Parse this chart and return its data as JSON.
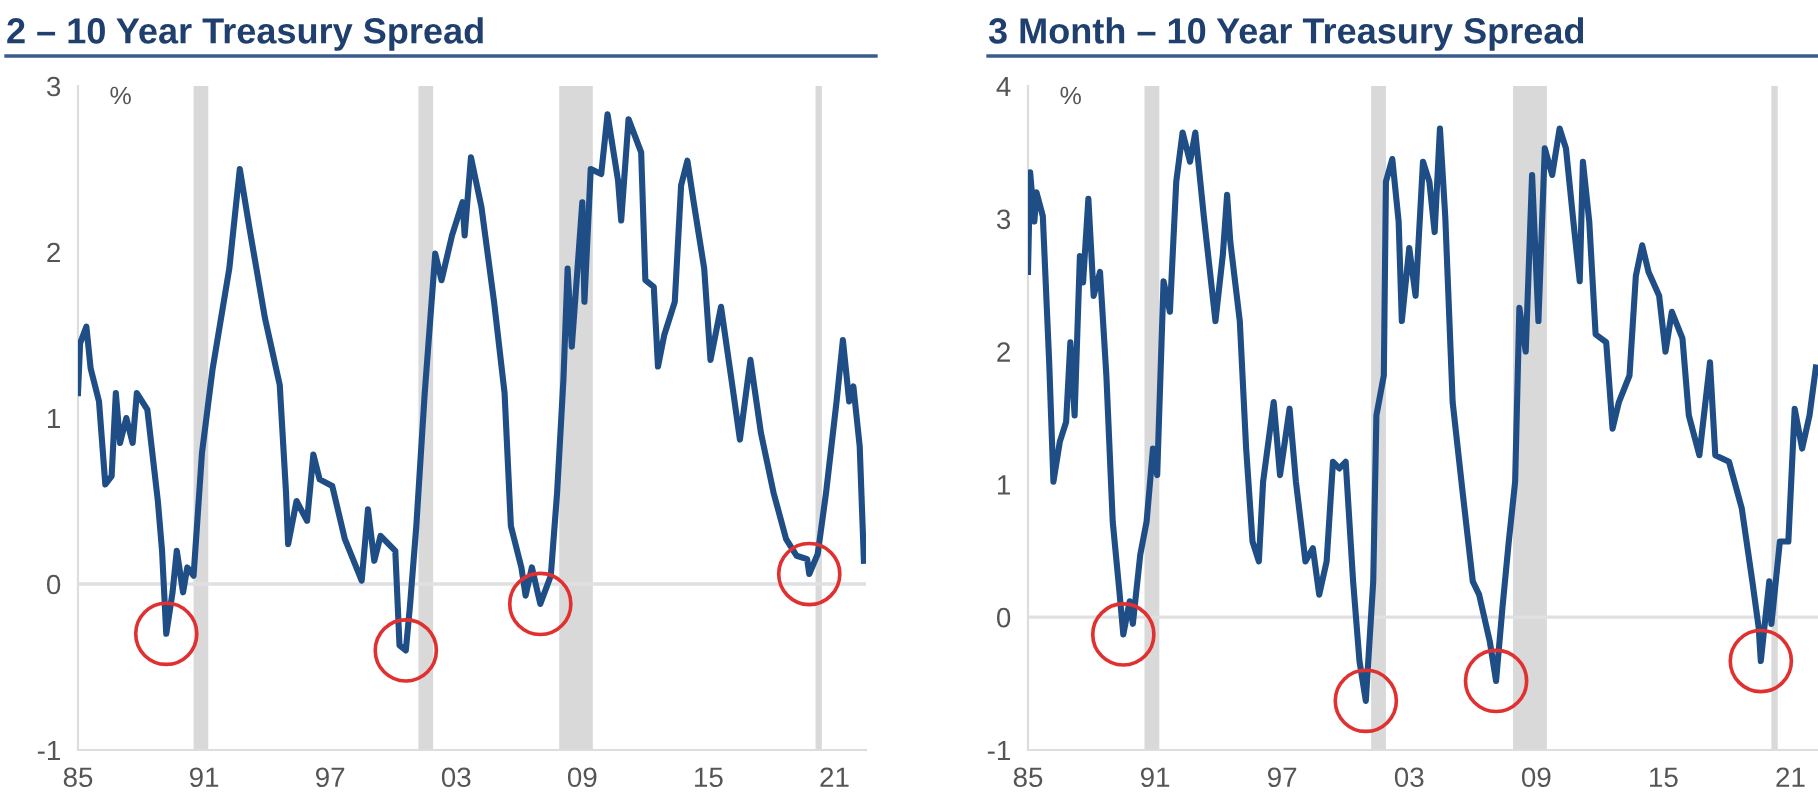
{
  "chart_data": [
    {
      "type": "line",
      "title": "2 – 10 Year Treasury Spread",
      "ylabel": "%",
      "xlim": [
        1985,
        2022.5
      ],
      "xticks": [
        {
          "value": 1985,
          "label": "85"
        },
        {
          "value": 1991,
          "label": "91"
        },
        {
          "value": 1997,
          "label": "97"
        },
        {
          "value": 2003,
          "label": "03"
        },
        {
          "value": 2009,
          "label": "09"
        },
        {
          "value": 2015,
          "label": "15"
        },
        {
          "value": 2021,
          "label": "21"
        }
      ],
      "ylim": [
        -1,
        3
      ],
      "yticks": [
        -1,
        0,
        1,
        2,
        3
      ],
      "grid": false,
      "legend": false,
      "ref_lines": [
        {
          "axis": "y",
          "value": 0,
          "color": "#e0e0e0"
        }
      ],
      "bands": [
        {
          "axis": "x",
          "from": 1990.5,
          "to": 1991.2,
          "color": "#d9d9d9"
        },
        {
          "axis": "x",
          "from": 2001.2,
          "to": 2001.9,
          "color": "#d9d9d9"
        },
        {
          "axis": "x",
          "from": 2007.9,
          "to": 2009.5,
          "color": "#d9d9d9"
        },
        {
          "axis": "x",
          "from": 2020.1,
          "to": 2020.4,
          "color": "#d9d9d9"
        }
      ],
      "series": [
        {
          "color": "#1f4e87",
          "x": [
            1985.0,
            1985.1,
            1985.4,
            1985.6,
            1986.0,
            1986.3,
            1986.6,
            1986.8,
            1987.0,
            1987.3,
            1987.6,
            1987.8,
            1988.3,
            1988.8,
            1989.0,
            1989.2,
            1989.5,
            1989.7,
            1990.0,
            1990.2,
            1990.5,
            1990.9,
            1991.4,
            1992.2,
            1992.7,
            1993.15,
            1993.9,
            1994.6,
            1994.9,
            1995.0,
            1995.4,
            1995.9,
            1996.2,
            1996.5,
            1997.1,
            1997.7,
            1998.5,
            1998.8,
            1999.1,
            1999.4,
            2000.1,
            2000.3,
            2000.6,
            2000.8,
            2001.1,
            2001.5,
            2002.0,
            2002.3,
            2002.8,
            2003.3,
            2003.4,
            2003.7,
            2004.2,
            2004.8,
            2005.3,
            2005.6,
            2006.1,
            2006.3,
            2006.6,
            2007.0,
            2007.5,
            2007.8,
            2008.1,
            2008.3,
            2008.5,
            2009.0,
            2009.1,
            2009.4,
            2009.9,
            2010.2,
            2010.7,
            2010.85,
            2011.2,
            2011.8,
            2012.0,
            2012.4,
            2012.6,
            2012.9,
            2013.4,
            2013.7,
            2014.0,
            2014.3,
            2014.8,
            2015.1,
            2015.6,
            2016.1,
            2016.5,
            2017.0,
            2017.5,
            2018.1,
            2018.7,
            2019.2,
            2019.7,
            2019.8,
            2020.2,
            2020.6,
            2021.1,
            2021.4,
            2021.7,
            2021.9,
            2022.2,
            2022.4
          ],
          "values": [
            1.15,
            1.45,
            1.55,
            1.3,
            1.1,
            0.6,
            0.65,
            1.15,
            0.85,
            1.0,
            0.85,
            1.15,
            1.05,
            0.5,
            0.2,
            -0.3,
            -0.05,
            0.2,
            -0.05,
            0.1,
            0.05,
            0.79,
            1.29,
            1.9,
            2.5,
            2.15,
            1.6,
            1.2,
            0.55,
            0.24,
            0.5,
            0.38,
            0.78,
            0.63,
            0.59,
            0.27,
            0.02,
            0.45,
            0.14,
            0.29,
            0.2,
            -0.37,
            -0.4,
            -0.13,
            0.35,
            1.15,
            1.99,
            1.83,
            2.1,
            2.3,
            2.1,
            2.57,
            2.27,
            1.7,
            1.15,
            0.35,
            0.1,
            -0.07,
            0.1,
            -0.12,
            0.05,
            0.55,
            1.23,
            1.9,
            1.43,
            2.3,
            1.7,
            2.5,
            2.47,
            2.83,
            2.43,
            2.19,
            2.8,
            2.6,
            1.83,
            1.79,
            1.31,
            1.5,
            1.7,
            2.4,
            2.55,
            2.3,
            1.9,
            1.35,
            1.67,
            1.23,
            0.87,
            1.35,
            0.91,
            0.55,
            0.27,
            0.17,
            0.15,
            0.06,
            0.18,
            0.55,
            1.1,
            1.47,
            1.1,
            1.19,
            0.83,
            0.14
          ]
        }
      ]
    },
    {
      "type": "line",
      "title": "3 Month – 10 Year Treasury Spread",
      "ylabel": "%",
      "xlim": [
        1985,
        2022.3
      ],
      "xticks": [
        {
          "value": 1985,
          "label": "85"
        },
        {
          "value": 1991,
          "label": "91"
        },
        {
          "value": 1997,
          "label": "97"
        },
        {
          "value": 2003,
          "label": "03"
        },
        {
          "value": 2009,
          "label": "09"
        },
        {
          "value": 2015,
          "label": "15"
        },
        {
          "value": 2021,
          "label": "21"
        }
      ],
      "ylim": [
        -1,
        4
      ],
      "yticks": [
        -1,
        0,
        1,
        2,
        3,
        4
      ],
      "grid": false,
      "legend": false,
      "ref_lines": [
        {
          "axis": "y",
          "value": 0,
          "color": "#e0e0e0"
        }
      ],
      "bands": [
        {
          "axis": "x",
          "from": 1990.5,
          "to": 1991.2,
          "color": "#d9d9d9"
        },
        {
          "axis": "x",
          "from": 2001.2,
          "to": 2001.9,
          "color": "#d9d9d9"
        },
        {
          "axis": "x",
          "from": 2007.9,
          "to": 2009.5,
          "color": "#d9d9d9"
        },
        {
          "axis": "x",
          "from": 2020.1,
          "to": 2020.4,
          "color": "#d9d9d9"
        }
      ],
      "series": [
        {
          "color": "#1f4e87",
          "x": [
            1985.0,
            1985.1,
            1985.3,
            1985.4,
            1985.7,
            1986.0,
            1986.2,
            1986.5,
            1986.8,
            1987.0,
            1987.2,
            1987.45,
            1987.6,
            1987.85,
            1988.1,
            1988.4,
            1988.7,
            1989.0,
            1989.3,
            1989.5,
            1989.8,
            1989.95,
            1990.3,
            1990.6,
            1990.9,
            1991.1,
            1991.4,
            1991.7,
            1992.0,
            1992.3,
            1992.65,
            1992.9,
            1993.3,
            1993.85,
            1994.2,
            1994.4,
            1994.55,
            1995.0,
            1995.3,
            1995.6,
            1995.9,
            1996.1,
            1996.6,
            1996.9,
            1997.35,
            1997.65,
            1998.1,
            1998.45,
            1998.75,
            1999.1,
            1999.4,
            1999.7,
            2000.0,
            2000.35,
            2000.65,
            2000.95,
            2001.3,
            2001.45,
            2001.8,
            2001.9,
            2002.2,
            2002.5,
            2002.65,
            2003.0,
            2003.3,
            2003.65,
            2003.95,
            2004.2,
            2004.45,
            2004.7,
            2005.05,
            2005.5,
            2006.0,
            2006.3,
            2006.8,
            2007.1,
            2007.4,
            2007.7,
            2008.0,
            2008.2,
            2008.5,
            2008.8,
            2009.1,
            2009.4,
            2009.75,
            2010.1,
            2010.4,
            2010.75,
            2011.05,
            2011.2,
            2011.5,
            2011.8,
            2012.3,
            2012.6,
            2012.9,
            2013.4,
            2013.7,
            2014.0,
            2014.3,
            2014.8,
            2015.1,
            2015.4,
            2015.9,
            2016.2,
            2016.7,
            2017.2,
            2017.45,
            2018.1,
            2018.7,
            2019.2,
            2019.5,
            2019.6,
            2020.0,
            2020.1,
            2020.5,
            2020.9,
            2021.2,
            2021.55,
            2021.9,
            2022.2
          ],
          "values": [
            2.6,
            3.35,
            2.98,
            3.2,
            3.02,
            1.92,
            1.02,
            1.32,
            1.47,
            2.07,
            1.52,
            2.72,
            2.52,
            3.15,
            2.42,
            2.6,
            1.82,
            0.72,
            0.22,
            -0.13,
            0.12,
            -0.05,
            0.47,
            0.72,
            1.27,
            1.07,
            2.53,
            2.3,
            3.28,
            3.65,
            3.43,
            3.65,
            3.02,
            2.23,
            2.73,
            3.18,
            2.83,
            2.23,
            1.27,
            0.57,
            0.42,
            1.02,
            1.62,
            1.07,
            1.57,
            1.02,
            0.42,
            0.52,
            0.17,
            0.42,
            1.17,
            1.12,
            1.17,
            0.27,
            -0.33,
            -0.63,
            0.27,
            1.52,
            1.82,
            3.28,
            3.45,
            2.98,
            2.23,
            2.78,
            2.42,
            3.43,
            3.28,
            2.9,
            3.68,
            3.02,
            1.62,
            0.97,
            0.27,
            0.17,
            -0.18,
            -0.48,
            0.07,
            0.57,
            1.02,
            2.33,
            2.0,
            3.33,
            2.23,
            3.53,
            3.33,
            3.68,
            3.53,
            2.98,
            2.53,
            3.43,
            2.98,
            2.13,
            2.07,
            1.42,
            1.62,
            1.82,
            2.57,
            2.8,
            2.6,
            2.42,
            2.0,
            2.3,
            2.1,
            1.52,
            1.22,
            1.92,
            1.22,
            1.17,
            0.82,
            0.27,
            -0.08,
            -0.33,
            0.27,
            -0.05,
            0.57,
            0.57,
            1.57,
            1.27,
            1.52,
            1.88
          ]
        }
      ]
    }
  ]
}
